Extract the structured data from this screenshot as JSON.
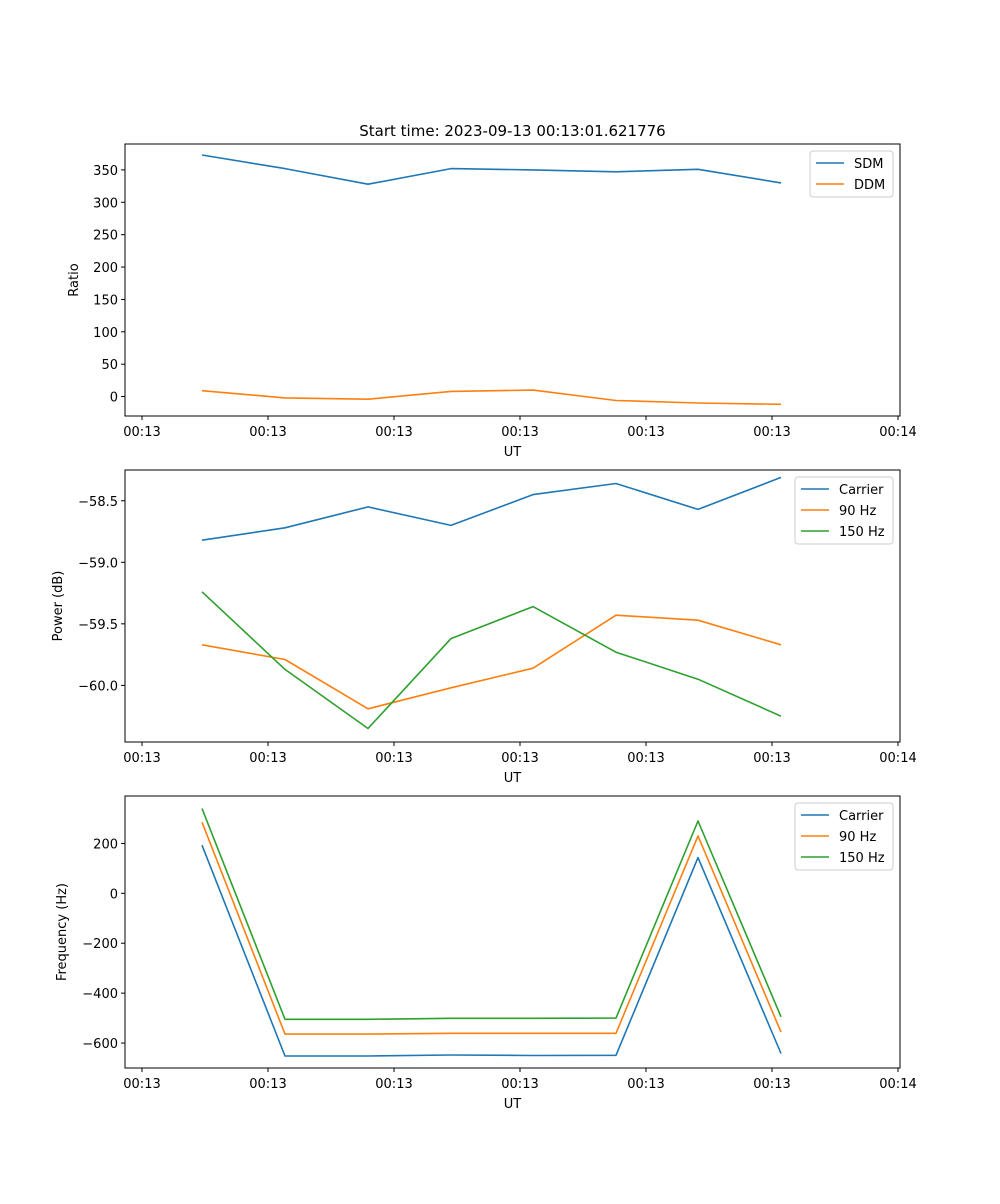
{
  "figure_title": "Start time: 2023-09-13 00:13:01.621776",
  "colors": {
    "blue": "#1f77b4",
    "orange": "#ff7f0e",
    "green": "#2ca02c"
  },
  "chart_data": [
    {
      "type": "line",
      "title": "Start time: 2023-09-13 00:13:01.621776",
      "xlabel": "UT",
      "ylabel": "Ratio",
      "xticks": [
        "00:13",
        "00:13",
        "00:13",
        "00:13",
        "00:13",
        "00:13",
        "00:14"
      ],
      "x_count": 8,
      "ylim": [
        -30,
        390
      ],
      "yticks": [
        0,
        50,
        100,
        150,
        200,
        250,
        300,
        350
      ],
      "legend": "top-right",
      "series": [
        {
          "name": "SDM",
          "color": "#1f77b4",
          "values": [
            373,
            352,
            328,
            352,
            350,
            347,
            351,
            330
          ]
        },
        {
          "name": "DDM",
          "color": "#ff7f0e",
          "values": [
            9,
            -2,
            -4,
            8,
            10,
            -6,
            -10,
            -12
          ]
        }
      ]
    },
    {
      "type": "line",
      "title": "",
      "xlabel": "UT",
      "ylabel": "Power (dB)",
      "xticks": [
        "00:13",
        "00:13",
        "00:13",
        "00:13",
        "00:13",
        "00:13",
        "00:14"
      ],
      "x_count": 8,
      "ylim": [
        -60.46,
        -58.25
      ],
      "yticks": [
        -60.0,
        -59.5,
        -59.0,
        -58.5
      ],
      "ytick_labels": [
        "−60.0",
        "−59.5",
        "−59.0",
        "−58.5"
      ],
      "legend": "top-right",
      "series": [
        {
          "name": "Carrier",
          "color": "#1f77b4",
          "values": [
            -58.82,
            -58.72,
            -58.55,
            -58.7,
            -58.45,
            -58.36,
            -58.57,
            -58.31
          ]
        },
        {
          "name": "90 Hz",
          "color": "#ff7f0e",
          "values": [
            -59.67,
            -59.79,
            -60.19,
            -60.02,
            -59.86,
            -59.43,
            -59.47,
            -59.67
          ]
        },
        {
          "name": "150 Hz",
          "color": "#2ca02c",
          "values": [
            -59.24,
            -59.87,
            -60.35,
            -59.62,
            -59.36,
            -59.73,
            -59.95,
            -60.25
          ]
        }
      ]
    },
    {
      "type": "line",
      "title": "",
      "xlabel": "UT",
      "ylabel": "Frequency (Hz)",
      "xticks": [
        "00:13",
        "00:13",
        "00:13",
        "00:13",
        "00:13",
        "00:13",
        "00:14"
      ],
      "x_count": 8,
      "ylim": [
        -700,
        390
      ],
      "yticks": [
        -600,
        -400,
        -200,
        0,
        200
      ],
      "ytick_labels": [
        "−600",
        "−400",
        "−200",
        "0",
        "200"
      ],
      "legend": "top-right",
      "series": [
        {
          "name": "Carrier",
          "color": "#1f77b4",
          "values": [
            193,
            -652,
            -652,
            -648,
            -650,
            -649,
            143,
            -642
          ]
        },
        {
          "name": "90 Hz",
          "color": "#ff7f0e",
          "values": [
            285,
            -564,
            -564,
            -561,
            -561,
            -561,
            230,
            -556
          ]
        },
        {
          "name": "150 Hz",
          "color": "#2ca02c",
          "values": [
            340,
            -505,
            -505,
            -501,
            -501,
            -500,
            290,
            -495
          ]
        }
      ]
    }
  ]
}
